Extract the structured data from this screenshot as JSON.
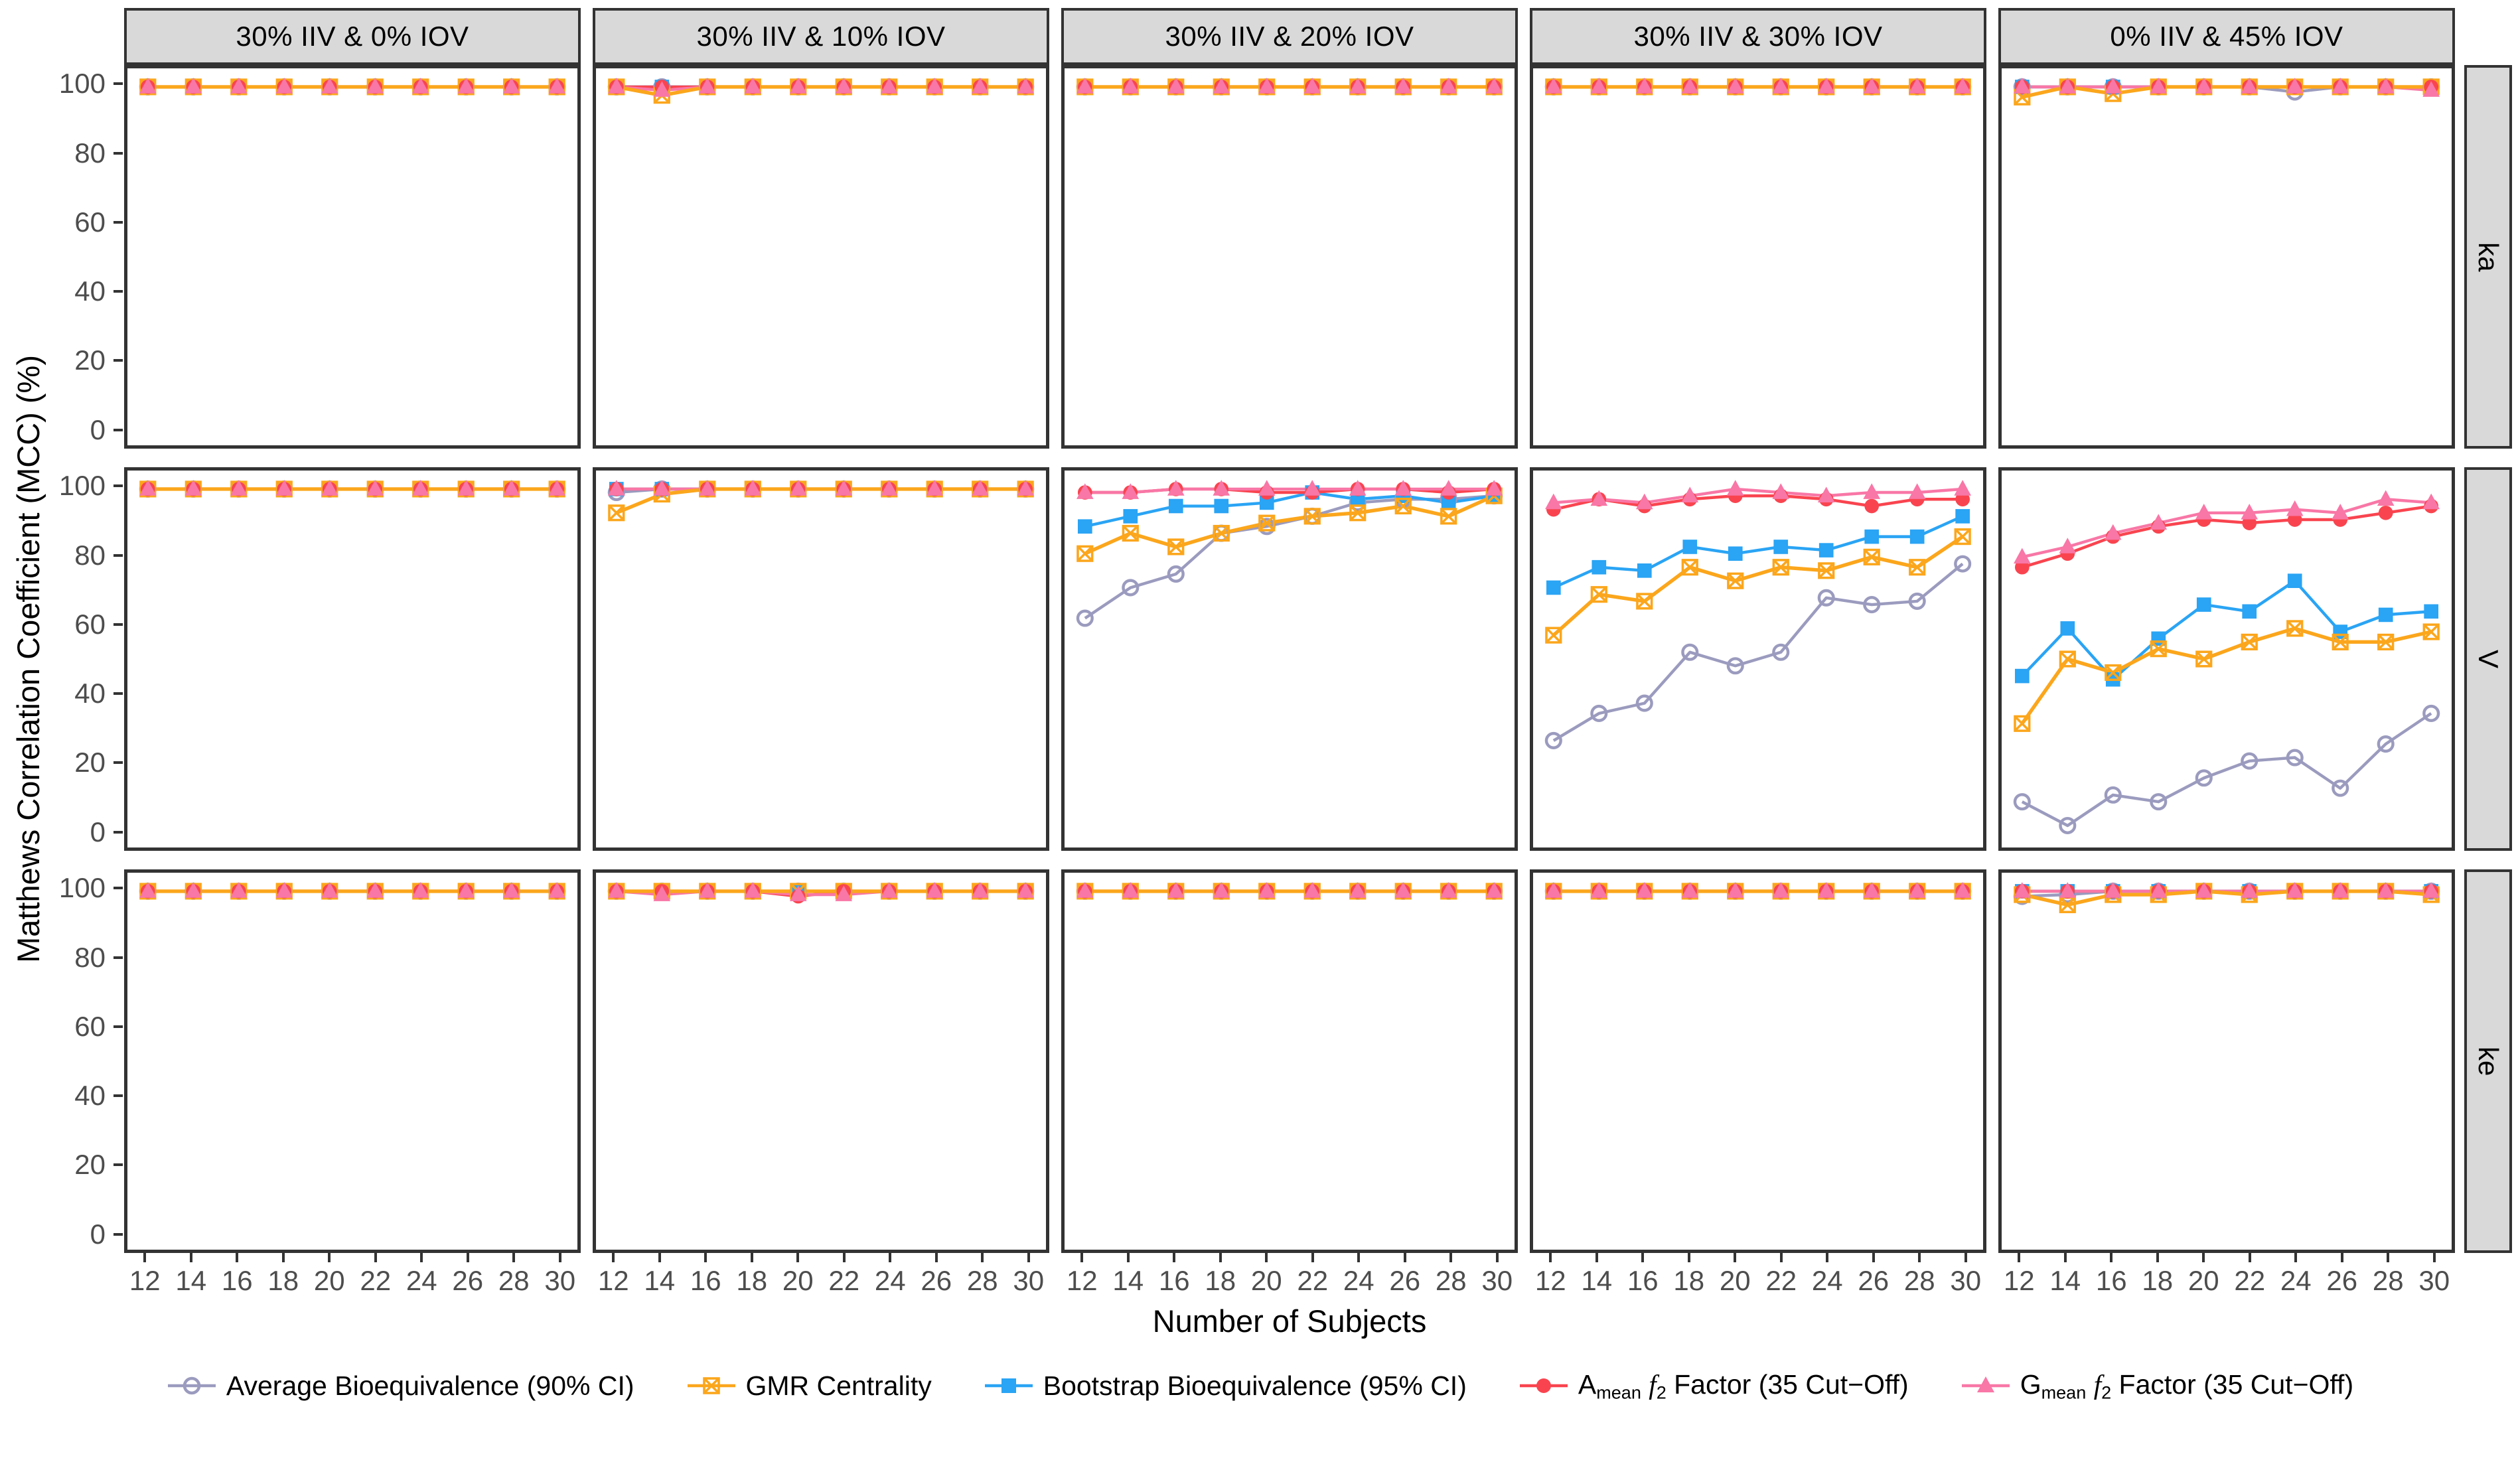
{
  "figure_title": "",
  "axes": {
    "x_title": "Number of Subjects",
    "y_title": "Matthews Correlation Coefficient (MCC) (%)",
    "x_tick_labels": [
      "12",
      "14",
      "16",
      "18",
      "20",
      "22",
      "24",
      "26",
      "28",
      "30"
    ],
    "y_tick_labels": [
      "100",
      "80",
      "60",
      "40",
      "20",
      "0"
    ]
  },
  "colors": {
    "strip_background": "#D9D9D9",
    "panel_border": "#333333",
    "tick_text": "#4D4D4D",
    "avg_be": "#9B9BBF",
    "gmr": "#FBA61C",
    "bootstrap": "#2AA4F4",
    "amean_f2": "#F9444F",
    "gmean_f2": "#F877A6"
  },
  "chart_data": {
    "type": "line",
    "x": [
      12,
      14,
      16,
      18,
      20,
      22,
      24,
      26,
      28,
      30
    ],
    "xlabel": "Number of Subjects",
    "ylabel": "Matthews Correlation Coefficient (MCC) (%)",
    "ylim": [
      0,
      100
    ],
    "y_ticks": [
      100,
      80,
      60,
      40,
      20,
      0
    ],
    "grid": false,
    "legend_position": "bottom",
    "col_facets": [
      "30% IIV & 0% IOV",
      "30% IIV & 10% IOV",
      "30% IIV & 20% IOV",
      "30% IIV & 30% IOV",
      "0% IIV & 45% IOV"
    ],
    "row_facets": [
      "ka",
      "V",
      "ke"
    ],
    "series": [
      {
        "id": "avg_be",
        "color": "#9B9BBF",
        "marker": "open-circle",
        "legend": [
          {
            "t": "Average Bioequivalence (90% CI)"
          }
        ]
      },
      {
        "id": "gmr",
        "color": "#FBA61C",
        "marker": "crossed-square",
        "legend": [
          {
            "t": "GMR Centrality"
          }
        ]
      },
      {
        "id": "bootstrap",
        "color": "#2AA4F4",
        "marker": "filled-square",
        "legend": [
          {
            "t": "Bootstrap Bioequivalence (95% CI)"
          }
        ]
      },
      {
        "id": "amean_f2",
        "color": "#F9444F",
        "marker": "filled-circle",
        "legend": [
          {
            "t": "A"
          },
          {
            "t": "mean",
            "sub": 1
          },
          {
            "t": " "
          },
          {
            "t": "f",
            "ital": 1
          },
          {
            "t": "2",
            "sub": 1
          },
          {
            "t": " Factor (35 Cut−Off)"
          }
        ]
      },
      {
        "id": "gmean_f2",
        "color": "#F877A6",
        "marker": "filled-triangle",
        "legend": [
          {
            "t": "G"
          },
          {
            "t": "mean",
            "sub": 1
          },
          {
            "t": " "
          },
          {
            "t": "f",
            "ital": 1
          },
          {
            "t": "2",
            "sub": 1
          },
          {
            "t": " Factor (35 Cut−Off)"
          }
        ]
      }
    ],
    "panels": [
      [
        {
          "avg_be": [
            100,
            100,
            100,
            100,
            100,
            100,
            100,
            100,
            100,
            100
          ],
          "gmr": [
            100,
            100,
            100,
            100,
            100,
            100,
            100,
            100,
            100,
            100
          ],
          "bootstrap": [
            100,
            100,
            100,
            100,
            100,
            100,
            100,
            100,
            100,
            100
          ],
          "amean_f2": [
            100,
            100,
            100,
            100,
            100,
            100,
            100,
            100,
            100,
            100
          ],
          "gmean_f2": [
            100,
            100,
            100,
            100,
            100,
            100,
            100,
            100,
            100,
            100
          ]
        },
        {
          "avg_be": [
            100,
            100,
            100,
            100,
            100,
            100,
            100,
            100,
            100,
            100
          ],
          "gmr": [
            100,
            97.5,
            100,
            100,
            100,
            100,
            100,
            100,
            100,
            100
          ],
          "bootstrap": [
            100,
            100,
            100,
            100,
            100,
            100,
            100,
            100,
            100,
            100
          ],
          "amean_f2": [
            100,
            100,
            100,
            100,
            100,
            100,
            100,
            100,
            100,
            100
          ],
          "gmean_f2": [
            100,
            99,
            100,
            100,
            100,
            100,
            100,
            100,
            100,
            100
          ]
        },
        {
          "avg_be": [
            100,
            100,
            100,
            100,
            100,
            100,
            100,
            100,
            100,
            100
          ],
          "gmr": [
            100,
            100,
            100,
            100,
            100,
            100,
            100,
            100,
            100,
            100
          ],
          "bootstrap": [
            100,
            100,
            100,
            100,
            100,
            100,
            100,
            100,
            100,
            100
          ],
          "amean_f2": [
            100,
            100,
            100,
            100,
            100,
            100,
            100,
            100,
            100,
            100
          ],
          "gmean_f2": [
            100,
            100,
            100,
            100,
            100,
            100,
            100,
            100,
            100,
            100
          ]
        },
        {
          "avg_be": [
            100,
            100,
            100,
            100,
            100,
            100,
            100,
            100,
            100,
            100
          ],
          "gmr": [
            100,
            100,
            100,
            100,
            100,
            100,
            100,
            100,
            100,
            100
          ],
          "bootstrap": [
            100,
            100,
            100,
            100,
            100,
            100,
            100,
            100,
            100,
            100
          ],
          "amean_f2": [
            100,
            100,
            100,
            100,
            100,
            100,
            100,
            100,
            100,
            100
          ],
          "gmean_f2": [
            100,
            100,
            100,
            100,
            100,
            100,
            100,
            100,
            100,
            100
          ]
        },
        {
          "avg_be": [
            100,
            100,
            100,
            100,
            100,
            100,
            98.5,
            100,
            100,
            100
          ],
          "gmr": [
            97,
            100,
            98,
            100,
            100,
            100,
            100,
            100,
            100,
            100
          ],
          "bootstrap": [
            100,
            100,
            100,
            100,
            100,
            100,
            100,
            100,
            100,
            100
          ],
          "amean_f2": [
            100,
            100,
            100,
            100,
            100,
            100,
            100,
            100,
            100,
            100
          ],
          "gmean_f2": [
            100,
            100,
            100,
            100,
            100,
            100,
            100,
            100,
            100,
            99
          ]
        }
      ],
      [
        {
          "avg_be": [
            100,
            100,
            100,
            100,
            100,
            100,
            100,
            100,
            100,
            100
          ],
          "gmr": [
            100,
            100,
            100,
            100,
            100,
            100,
            100,
            100,
            100,
            100
          ],
          "bootstrap": [
            100,
            100,
            100,
            100,
            100,
            100,
            100,
            100,
            100,
            100
          ],
          "amean_f2": [
            100,
            100,
            100,
            100,
            100,
            100,
            100,
            100,
            100,
            100
          ],
          "gmean_f2": [
            100,
            100,
            100,
            100,
            100,
            100,
            100,
            100,
            100,
            100
          ]
        },
        {
          "avg_be": [
            99,
            100,
            100,
            100,
            100,
            100,
            100,
            100,
            100,
            100
          ],
          "gmr": [
            93,
            98.5,
            100,
            100,
            100,
            100,
            100,
            100,
            100,
            100
          ],
          "bootstrap": [
            100,
            100,
            100,
            100,
            100,
            100,
            100,
            100,
            100,
            100
          ],
          "amean_f2": [
            100,
            100,
            100,
            100,
            100,
            100,
            100,
            100,
            100,
            100
          ],
          "gmean_f2": [
            100,
            100,
            100,
            100,
            100,
            100,
            100,
            100,
            100,
            100
          ]
        },
        {
          "avg_be": [
            62,
            71,
            75,
            87,
            89,
            92,
            96,
            97,
            97,
            98
          ],
          "gmr": [
            81,
            87,
            83,
            87,
            90,
            92,
            93,
            95,
            92,
            98
          ],
          "bootstrap": [
            89,
            92,
            95,
            95,
            96,
            99,
            97,
            98,
            96,
            98
          ],
          "amean_f2": [
            99,
            99,
            100,
            100,
            99,
            99,
            100,
            100,
            99,
            100
          ],
          "gmean_f2": [
            99,
            99,
            100,
            100,
            100,
            100,
            100,
            100,
            100,
            100
          ]
        },
        {
          "avg_be": [
            26,
            34,
            37,
            52,
            48,
            52,
            68,
            66,
            67,
            78
          ],
          "gmr": [
            57,
            69,
            67,
            77,
            73,
            77,
            76,
            80,
            77,
            86
          ],
          "bootstrap": [
            71,
            77,
            76,
            83,
            81,
            83,
            82,
            86,
            86,
            92
          ],
          "amean_f2": [
            94,
            97,
            95,
            97,
            98,
            98,
            97,
            95,
            97,
            97
          ],
          "gmean_f2": [
            96,
            97,
            96,
            98,
            100,
            99,
            98,
            99,
            99,
            100
          ]
        },
        {
          "avg_be": [
            8,
            1,
            10,
            8,
            15,
            20,
            21,
            12,
            25,
            34
          ],
          "gmr": [
            31,
            50,
            46,
            53,
            50,
            55,
            59,
            55,
            55,
            58
          ],
          "bootstrap": [
            45,
            59,
            44,
            56,
            66,
            64,
            73,
            58,
            63,
            64
          ],
          "amean_f2": [
            77,
            81,
            86,
            89,
            91,
            90,
            91,
            91,
            93,
            95
          ],
          "gmean_f2": [
            80,
            83,
            87,
            90,
            93,
            93,
            94,
            93,
            97,
            96
          ]
        }
      ],
      [
        {
          "avg_be": [
            100,
            100,
            100,
            100,
            100,
            100,
            100,
            100,
            100,
            100
          ],
          "gmr": [
            100,
            100,
            100,
            100,
            100,
            100,
            100,
            100,
            100,
            100
          ],
          "bootstrap": [
            100,
            100,
            100,
            100,
            100,
            100,
            100,
            100,
            100,
            100
          ],
          "amean_f2": [
            100,
            100,
            100,
            100,
            100,
            100,
            100,
            100,
            100,
            100
          ],
          "gmean_f2": [
            100,
            100,
            100,
            100,
            100,
            100,
            100,
            100,
            100,
            100
          ]
        },
        {
          "avg_be": [
            100,
            100,
            100,
            100,
            100,
            100,
            100,
            100,
            100,
            100
          ],
          "gmr": [
            100,
            100,
            100,
            100,
            100,
            100,
            100,
            100,
            100,
            100
          ],
          "bootstrap": [
            100,
            100,
            100,
            100,
            100,
            100,
            100,
            100,
            100,
            100
          ],
          "amean_f2": [
            100,
            100,
            100,
            100,
            98.5,
            100,
            100,
            100,
            100,
            100
          ],
          "gmean_f2": [
            100,
            99,
            100,
            100,
            99,
            99,
            100,
            100,
            100,
            100
          ]
        },
        {
          "avg_be": [
            100,
            100,
            100,
            100,
            100,
            100,
            100,
            100,
            100,
            100
          ],
          "gmr": [
            100,
            100,
            100,
            100,
            100,
            100,
            100,
            100,
            100,
            100
          ],
          "bootstrap": [
            100,
            100,
            100,
            100,
            100,
            100,
            100,
            100,
            100,
            100
          ],
          "amean_f2": [
            100,
            100,
            100,
            100,
            100,
            100,
            100,
            100,
            100,
            100
          ],
          "gmean_f2": [
            100,
            100,
            100,
            100,
            100,
            100,
            100,
            100,
            100,
            100
          ]
        },
        {
          "avg_be": [
            100,
            100,
            100,
            100,
            100,
            100,
            100,
            100,
            100,
            100
          ],
          "gmr": [
            100,
            100,
            100,
            100,
            100,
            100,
            100,
            100,
            100,
            100
          ],
          "bootstrap": [
            100,
            100,
            100,
            100,
            100,
            100,
            100,
            100,
            100,
            100
          ],
          "amean_f2": [
            100,
            100,
            100,
            100,
            100,
            100,
            100,
            100,
            100,
            100
          ],
          "gmean_f2": [
            100,
            100,
            100,
            100,
            100,
            100,
            100,
            100,
            100,
            100
          ]
        },
        {
          "avg_be": [
            98.5,
            99,
            100,
            100,
            100,
            100,
            100,
            100,
            100,
            100
          ],
          "gmr": [
            99,
            96,
            99,
            99,
            100,
            99,
            100,
            100,
            100,
            99
          ],
          "bootstrap": [
            100,
            100,
            100,
            100,
            100,
            100,
            100,
            100,
            100,
            100
          ],
          "amean_f2": [
            100,
            100,
            100,
            100,
            100,
            100,
            100,
            100,
            100,
            100
          ],
          "gmean_f2": [
            100,
            100,
            100,
            100,
            100,
            100,
            100,
            100,
            100,
            100
          ]
        }
      ]
    ]
  }
}
